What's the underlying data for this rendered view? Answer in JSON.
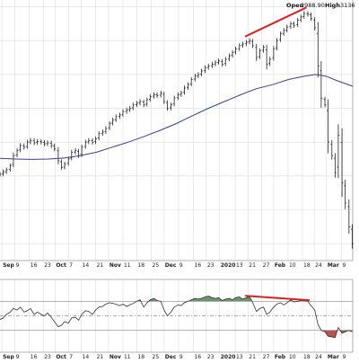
{
  "header": {
    "open_label": "Open",
    "open_value": "2988.90",
    "high_label": "High",
    "high_value": "3136"
  },
  "chart_data": [
    {
      "type": "ohlc",
      "title": "",
      "x_tick_labels": [
        "Sep",
        "9",
        "16",
        "23",
        "Oct",
        "7",
        "14",
        "21",
        "Nov",
        "11",
        "18",
        "25",
        "Dec",
        "9",
        "16",
        "23",
        "2020",
        "13",
        "21",
        "27",
        "Feb",
        "10",
        "18",
        "24",
        "Mar",
        "9"
      ],
      "x_tick_positions": [
        0.35,
        2.8,
        5.5,
        8.1,
        10.3,
        12.8,
        15.2,
        17.9,
        20.3,
        23.0,
        25.6,
        28.3,
        30.7,
        33.4,
        36.2,
        38.6,
        41.1,
        44.0,
        46.4,
        49.0,
        51.2,
        53.9,
        56.6,
        58.8,
        61.1,
        63.9
      ],
      "series": [
        {
          "kind": "ohlc",
          "points": [
            {
              "x": 0.0,
              "c": 2905
            },
            {
              "x": 0.6,
              "c": 2912
            },
            {
              "x": 1.2,
              "c": 2918
            },
            {
              "x": 1.9,
              "c": 2930
            },
            {
              "x": 2.5,
              "c": 2960
            },
            {
              "x": 3.2,
              "c": 2975
            },
            {
              "x": 3.8,
              "c": 2990
            },
            {
              "x": 4.5,
              "c": 2985
            },
            {
              "x": 5.1,
              "c": 3000
            },
            {
              "x": 5.7,
              "c": 3005
            },
            {
              "x": 6.4,
              "c": 2998
            },
            {
              "x": 7.0,
              "c": 3002
            },
            {
              "x": 7.7,
              "c": 3000
            },
            {
              "x": 8.3,
              "c": 2995
            },
            {
              "x": 8.9,
              "c": 2998
            },
            {
              "x": 9.6,
              "c": 2990
            },
            {
              "x": 10.2,
              "c": 2980
            },
            {
              "x": 10.9,
              "c": 2945
            },
            {
              "x": 11.5,
              "c": 2925
            },
            {
              "x": 12.1,
              "c": 2935
            },
            {
              "x": 12.8,
              "c": 2950
            },
            {
              "x": 13.4,
              "c": 2970
            },
            {
              "x": 14.1,
              "c": 2975
            },
            {
              "x": 14.7,
              "c": 2960
            },
            {
              "x": 15.3,
              "c": 2985
            },
            {
              "x": 16.0,
              "c": 3000
            },
            {
              "x": 16.6,
              "c": 3005
            },
            {
              "x": 17.3,
              "c": 3000
            },
            {
              "x": 17.9,
              "c": 3010
            },
            {
              "x": 18.5,
              "c": 3025
            },
            {
              "x": 19.2,
              "c": 3030
            },
            {
              "x": 19.8,
              "c": 3040
            },
            {
              "x": 20.5,
              "c": 3055
            },
            {
              "x": 21.1,
              "c": 3065
            },
            {
              "x": 21.7,
              "c": 3075
            },
            {
              "x": 22.4,
              "c": 3080
            },
            {
              "x": 23.0,
              "c": 3090
            },
            {
              "x": 23.7,
              "c": 3095
            },
            {
              "x": 24.3,
              "c": 3100
            },
            {
              "x": 24.9,
              "c": 3110
            },
            {
              "x": 25.6,
              "c": 3115
            },
            {
              "x": 26.2,
              "c": 3120
            },
            {
              "x": 26.9,
              "c": 3110
            },
            {
              "x": 27.5,
              "c": 3125
            },
            {
              "x": 28.1,
              "c": 3135
            },
            {
              "x": 28.8,
              "c": 3140
            },
            {
              "x": 29.4,
              "c": 3138
            },
            {
              "x": 30.1,
              "c": 3145
            },
            {
              "x": 30.7,
              "c": 3120
            },
            {
              "x": 31.3,
              "c": 3100
            },
            {
              "x": 32.0,
              "c": 3110
            },
            {
              "x": 32.6,
              "c": 3130
            },
            {
              "x": 33.3,
              "c": 3140
            },
            {
              "x": 33.9,
              "c": 3145
            },
            {
              "x": 34.5,
              "c": 3160
            },
            {
              "x": 35.2,
              "c": 3170
            },
            {
              "x": 35.8,
              "c": 3185
            },
            {
              "x": 36.5,
              "c": 3195
            },
            {
              "x": 37.1,
              "c": 3200
            },
            {
              "x": 37.7,
              "c": 3210
            },
            {
              "x": 38.4,
              "c": 3220
            },
            {
              "x": 39.0,
              "c": 3225
            },
            {
              "x": 39.7,
              "c": 3230
            },
            {
              "x": 40.3,
              "c": 3235
            },
            {
              "x": 40.9,
              "c": 3240
            },
            {
              "x": 41.6,
              "c": 3230
            },
            {
              "x": 42.2,
              "c": 3245
            },
            {
              "x": 42.9,
              "c": 3255
            },
            {
              "x": 43.5,
              "c": 3265
            },
            {
              "x": 44.1,
              "c": 3275
            },
            {
              "x": 44.8,
              "c": 3285
            },
            {
              "x": 45.4,
              "c": 3290
            },
            {
              "x": 46.1,
              "c": 3295
            },
            {
              "x": 46.7,
              "c": 3300
            },
            {
              "x": 47.3,
              "c": 3285
            },
            {
              "x": 48.0,
              "c": 3250
            },
            {
              "x": 48.6,
              "c": 3270
            },
            {
              "x": 49.3,
              "c": 3280
            },
            {
              "x": 49.9,
              "c": 3230
            },
            {
              "x": 50.5,
              "c": 3245
            },
            {
              "x": 51.2,
              "c": 3275
            },
            {
              "x": 51.8,
              "c": 3300
            },
            {
              "x": 52.5,
              "c": 3320
            },
            {
              "x": 53.1,
              "c": 3330
            },
            {
              "x": 53.7,
              "c": 3340
            },
            {
              "x": 54.4,
              "c": 3350
            },
            {
              "x": 55.0,
              "c": 3345
            },
            {
              "x": 55.7,
              "c": 3360
            },
            {
              "x": 56.3,
              "c": 3370
            },
            {
              "x": 56.9,
              "c": 3380
            },
            {
              "x": 57.6,
              "c": 3378
            },
            {
              "x": 58.2,
              "c": 3365
            },
            {
              "x": 58.9,
              "c": 3338
            },
            {
              "x": 59.5,
              "c": 3225
            },
            {
              "x": 60.1,
              "c": 3130
            },
            {
              "x": 60.8,
              "c": 3110
            },
            {
              "x": 61.4,
              "c": 3000
            },
            {
              "x": 62.1,
              "c": 2960
            },
            {
              "x": 62.7,
              "c": 2910
            },
            {
              "x": 63.3,
              "c": 3020
            },
            {
              "x": 64.0,
              "c": 2880
            },
            {
              "x": 64.6,
              "c": 2820
            },
            {
              "x": 65.3,
              "c": 2750
            },
            {
              "x": 65.9,
              "c": 2700
            }
          ]
        },
        {
          "kind": "moving-average",
          "points": [
            [
              0,
              2952
            ],
            [
              3,
              2950
            ],
            [
              6,
              2949
            ],
            [
              9,
              2950
            ],
            [
              12,
              2953
            ],
            [
              15,
              2960
            ],
            [
              18,
              2970
            ],
            [
              21,
              2985
            ],
            [
              24,
              3000
            ],
            [
              27,
              3017
            ],
            [
              30,
              3035
            ],
            [
              33,
              3055
            ],
            [
              36,
              3078
            ],
            [
              39,
              3100
            ],
            [
              42,
              3120
            ],
            [
              45,
              3140
            ],
            [
              48,
              3158
            ],
            [
              51,
              3170
            ],
            [
              54,
              3185
            ],
            [
              57,
              3195
            ],
            [
              59,
              3200
            ],
            [
              61,
              3195
            ],
            [
              63,
              3182
            ],
            [
              66,
              3165
            ]
          ]
        }
      ],
      "ylim": [
        2650,
        3420
      ],
      "xlim": [
        0,
        66
      ],
      "annotations": [
        {
          "kind": "trendline",
          "color": "#e02020",
          "from": [
            46.0,
            3313
          ],
          "to": [
            57.2,
            3397
          ]
        }
      ],
      "grid": true
    },
    {
      "type": "line",
      "title": "",
      "series": [
        {
          "kind": "oscillator",
          "points": [
            [
              0,
              45
            ],
            [
              0.6,
              47
            ],
            [
              1.2,
              52
            ],
            [
              1.9,
              55
            ],
            [
              2.5,
              60
            ],
            [
              3.2,
              58
            ],
            [
              3.8,
              62
            ],
            [
              4.5,
              55
            ],
            [
              5.1,
              57
            ],
            [
              5.7,
              60
            ],
            [
              6.4,
              52
            ],
            [
              7.0,
              55
            ],
            [
              7.7,
              52
            ],
            [
              8.3,
              50
            ],
            [
              8.9,
              54
            ],
            [
              9.6,
              48
            ],
            [
              10.2,
              42
            ],
            [
              10.9,
              35
            ],
            [
              11.5,
              37
            ],
            [
              12.1,
              42
            ],
            [
              12.8,
              40
            ],
            [
              13.4,
              47
            ],
            [
              14.1,
              48
            ],
            [
              14.7,
              44
            ],
            [
              15.3,
              52
            ],
            [
              16.0,
              57
            ],
            [
              16.6,
              56
            ],
            [
              17.3,
              52
            ],
            [
              17.9,
              58
            ],
            [
              18.5,
              62
            ],
            [
              19.2,
              63
            ],
            [
              19.8,
              66
            ],
            [
              20.5,
              68
            ],
            [
              21.1,
              67
            ],
            [
              21.7,
              66
            ],
            [
              22.4,
              64
            ],
            [
              23.0,
              66
            ],
            [
              23.7,
              63
            ],
            [
              24.3,
              65
            ],
            [
              24.9,
              67
            ],
            [
              25.6,
              70
            ],
            [
              26.2,
              72
            ],
            [
              26.9,
              62
            ],
            [
              27.5,
              68
            ],
            [
              28.1,
              72
            ],
            [
              28.8,
              74
            ],
            [
              29.4,
              71
            ],
            [
              30.1,
              70
            ],
            [
              30.7,
              58
            ],
            [
              31.3,
              50
            ],
            [
              32.0,
              55
            ],
            [
              32.6,
              62
            ],
            [
              33.3,
              65
            ],
            [
              33.9,
              64
            ],
            [
              34.5,
              68
            ],
            [
              35.2,
              70
            ],
            [
              35.8,
              72
            ],
            [
              36.5,
              74
            ],
            [
              37.1,
              73
            ],
            [
              37.7,
              74
            ],
            [
              38.4,
              76
            ],
            [
              39.0,
              77
            ],
            [
              39.7,
              75
            ],
            [
              40.3,
              74
            ],
            [
              40.9,
              75
            ],
            [
              41.6,
              71
            ],
            [
              42.2,
              73
            ],
            [
              42.9,
              74
            ],
            [
              43.5,
              72
            ],
            [
              44.1,
              75
            ],
            [
              44.8,
              76
            ],
            [
              45.4,
              73
            ],
            [
              46.1,
              75
            ],
            [
              46.7,
              76
            ],
            [
              47.3,
              68
            ],
            [
              48.0,
              56
            ],
            [
              48.6,
              60
            ],
            [
              49.3,
              62
            ],
            [
              49.9,
              52
            ],
            [
              50.5,
              55
            ],
            [
              51.2,
              62
            ],
            [
              51.8,
              66
            ],
            [
              52.5,
              68
            ],
            [
              53.1,
              65
            ],
            [
              53.7,
              68
            ],
            [
              54.4,
              72
            ],
            [
              55.0,
              69
            ],
            [
              55.7,
              70
            ],
            [
              56.3,
              71
            ],
            [
              56.9,
              71
            ],
            [
              57.6,
              70
            ],
            [
              58.2,
              64
            ],
            [
              58.9,
              58
            ],
            [
              59.5,
              38
            ],
            [
              60.1,
              30
            ],
            [
              60.8,
              28
            ],
            [
              61.4,
              22
            ],
            [
              62.1,
              21
            ],
            [
              62.7,
              20
            ],
            [
              63.3,
              34
            ],
            [
              64.0,
              26
            ],
            [
              64.6,
              28
            ],
            [
              65.3,
              30
            ],
            [
              65.9,
              28
            ]
          ]
        }
      ],
      "reference_levels": [
        70,
        50,
        30
      ],
      "ylim": [
        0,
        100
      ],
      "xlim": [
        0,
        66
      ],
      "fill_colors": {
        "overbought": "#5b8a5b",
        "oversold": "#b04040"
      },
      "annotations": [
        {
          "kind": "trendline",
          "color": "#e02020",
          "from": [
            46.0,
            77.5
          ],
          "to": [
            57.8,
            71.5
          ]
        }
      ],
      "grid": true
    }
  ],
  "colors": {
    "grid": "#dcdcdc",
    "frame": "#9a9a9a",
    "price_bars": "#222222",
    "moving_average": "#3a3f8a",
    "oscillator_line": "#333333",
    "reference_line": "#8a8a8a"
  }
}
